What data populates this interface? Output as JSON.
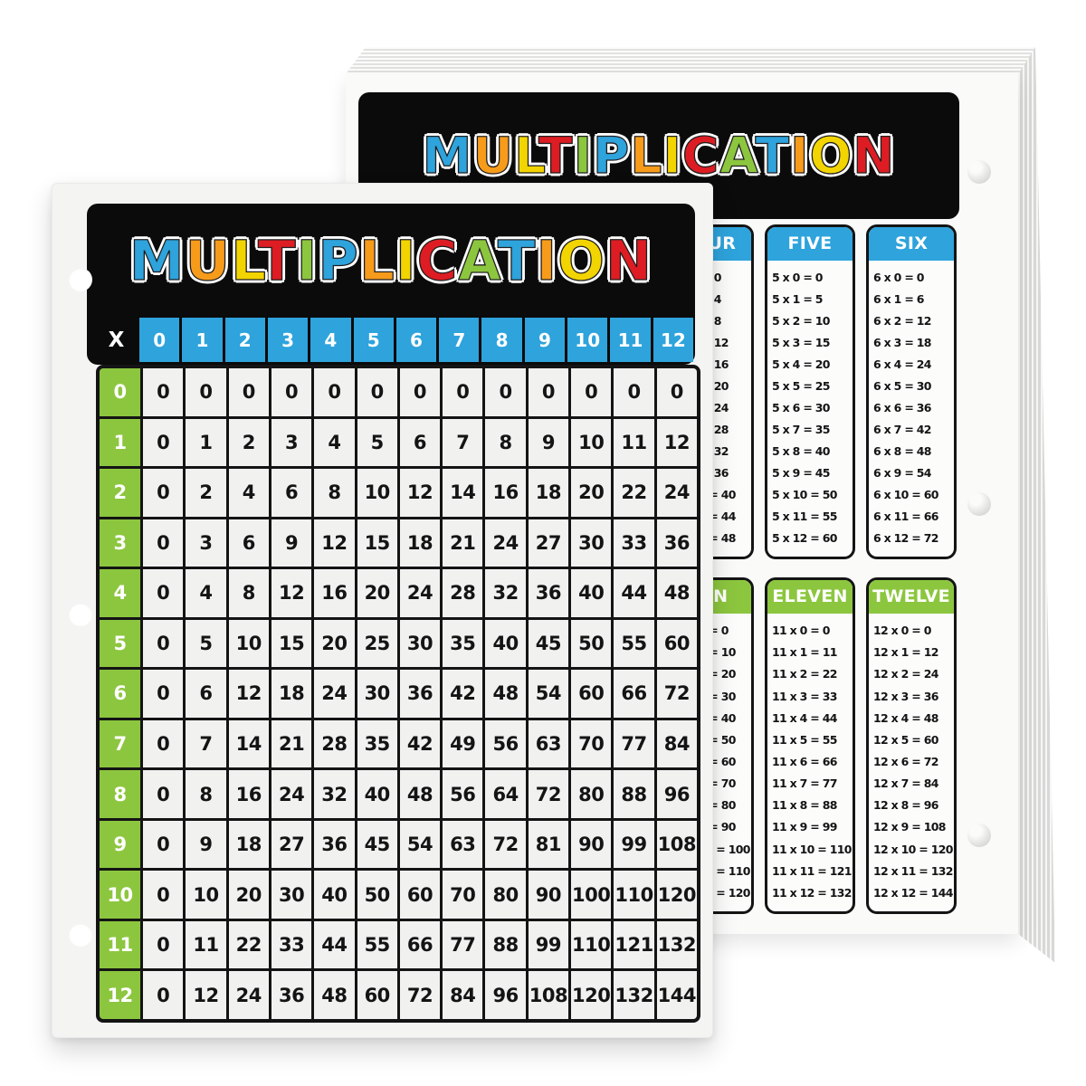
{
  "page_background": "#ffffff",
  "palette": {
    "blue": "#2ea3dc",
    "orange": "#f79b1b",
    "yellow": "#f2d400",
    "red": "#dd1d23",
    "green": "#8cc63f",
    "panel_black": "#0b0b0b",
    "front_card_bg": "#f4f4f3",
    "back_pad_bg": "#fafaf9",
    "cell_bg": "#f1f1f0",
    "ink": "#141414"
  },
  "title": {
    "text": "MULTIPLICATION",
    "letter_colors": [
      "#2ea3dc",
      "#f79b1b",
      "#f2d400",
      "#dd1d23",
      "#8cc63f",
      "#2ea3dc",
      "#f79b1b",
      "#f2d400",
      "#dd1d23",
      "#8cc63f",
      "#2ea3dc",
      "#f79b1b",
      "#f2d400",
      "#dd1d23"
    ]
  },
  "chart_data": {
    "type": "table",
    "title": "MULTIPLICATION",
    "front_grid": {
      "corner_label": "X",
      "col_headers": [
        "0",
        "1",
        "2",
        "3",
        "4",
        "5",
        "6",
        "7",
        "8",
        "9",
        "10",
        "11",
        "12"
      ],
      "row_headers": [
        "0",
        "1",
        "2",
        "3",
        "4",
        "5",
        "6",
        "7",
        "8",
        "9",
        "10",
        "11",
        "12"
      ],
      "values": [
        [
          0,
          0,
          0,
          0,
          0,
          0,
          0,
          0,
          0,
          0,
          0,
          0,
          0
        ],
        [
          0,
          1,
          2,
          3,
          4,
          5,
          6,
          7,
          8,
          9,
          10,
          11,
          12
        ],
        [
          0,
          2,
          4,
          6,
          8,
          10,
          12,
          14,
          16,
          18,
          20,
          22,
          24
        ],
        [
          0,
          3,
          6,
          9,
          12,
          15,
          18,
          21,
          24,
          27,
          30,
          33,
          36
        ],
        [
          0,
          4,
          8,
          12,
          16,
          20,
          24,
          28,
          32,
          36,
          40,
          44,
          48
        ],
        [
          0,
          5,
          10,
          15,
          20,
          25,
          30,
          35,
          40,
          45,
          50,
          55,
          60
        ],
        [
          0,
          6,
          12,
          18,
          24,
          30,
          36,
          42,
          48,
          54,
          60,
          66,
          72
        ],
        [
          0,
          7,
          14,
          21,
          28,
          35,
          42,
          49,
          56,
          63,
          70,
          77,
          84
        ],
        [
          0,
          8,
          16,
          24,
          32,
          40,
          48,
          56,
          64,
          72,
          80,
          88,
          96
        ],
        [
          0,
          9,
          18,
          27,
          36,
          45,
          54,
          63,
          72,
          81,
          90,
          99,
          108
        ],
        [
          0,
          10,
          20,
          30,
          40,
          50,
          60,
          70,
          80,
          90,
          100,
          110,
          120
        ],
        [
          0,
          11,
          22,
          33,
          44,
          55,
          66,
          77,
          88,
          99,
          110,
          121,
          132
        ],
        [
          0,
          12,
          24,
          36,
          48,
          60,
          72,
          84,
          96,
          108,
          120,
          132,
          144
        ]
      ]
    },
    "back_fact_tables": {
      "sections": [
        {
          "group_color": "#2ea3dc",
          "columns": [
            {
              "label": "FOUR",
              "facts": [
                "4 x 0 = 0",
                "4 x 1 = 4",
                "4 x 2 = 8",
                "4 x 3 = 12",
                "4 x 4 = 16",
                "4 x 5 = 20",
                "4 x 6 = 24",
                "4 x 7 = 28",
                "4 x 8 = 32",
                "4 x 9 = 36",
                "4 x 10 = 40",
                "4 x 11 = 44",
                "4 x 12 = 48"
              ]
            },
            {
              "label": "FIVE",
              "facts": [
                "5 x 0 = 0",
                "5 x 1 = 5",
                "5 x 2 = 10",
                "5 x 3 = 15",
                "5 x 4 = 20",
                "5 x 5 = 25",
                "5 x 6 = 30",
                "5 x 7 = 35",
                "5 x 8 = 40",
                "5 x 9 = 45",
                "5 x 10 = 50",
                "5 x 11 = 55",
                "5 x 12 = 60"
              ]
            },
            {
              "label": "SIX",
              "facts": [
                "6 x 0 = 0",
                "6 x 1 = 6",
                "6 x 2 = 12",
                "6 x 3 = 18",
                "6 x 4 = 24",
                "6 x 5 = 30",
                "6 x 6 = 36",
                "6 x 7 = 42",
                "6 x 8 = 48",
                "6 x 9 = 54",
                "6 x 10 = 60",
                "6 x 11 = 66",
                "6 x 12 = 72"
              ]
            }
          ]
        },
        {
          "group_color": "#8cc63f",
          "columns": [
            {
              "label": "TEN",
              "facts": [
                "10 x 0 = 0",
                "10 x 1 = 10",
                "10 x 2 = 20",
                "10 x 3 = 30",
                "10 x 4 = 40",
                "10 x 5 = 50",
                "10 x 6 = 60",
                "10 x 7 = 70",
                "10 x 8 = 80",
                "10 x 9 = 90",
                "10 x 10 = 100",
                "10 x 11 = 110",
                "10 x 12 = 120"
              ]
            },
            {
              "label": "ELEVEN",
              "facts": [
                "11 x 0 = 0",
                "11 x 1 = 11",
                "11 x 2 = 22",
                "11 x 3 = 33",
                "11 x 4 = 44",
                "11 x 5 = 55",
                "11 x 6 = 66",
                "11 x 7 = 77",
                "11 x 8 = 88",
                "11 x 9 = 99",
                "11 x 10 = 110",
                "11 x 11 = 121",
                "11 x 12 = 132"
              ]
            },
            {
              "label": "TWELVE",
              "facts": [
                "12 x 0 = 0",
                "12 x 1 = 12",
                "12 x 2 = 24",
                "12 x 3 = 36",
                "12 x 4 = 48",
                "12 x 5 = 60",
                "12 x 6 = 72",
                "12 x 7 = 84",
                "12 x 8 = 96",
                "12 x 9 = 108",
                "12 x 10 = 120",
                "12 x 11 = 132",
                "12 x 12 = 144"
              ]
            }
          ]
        }
      ]
    }
  }
}
